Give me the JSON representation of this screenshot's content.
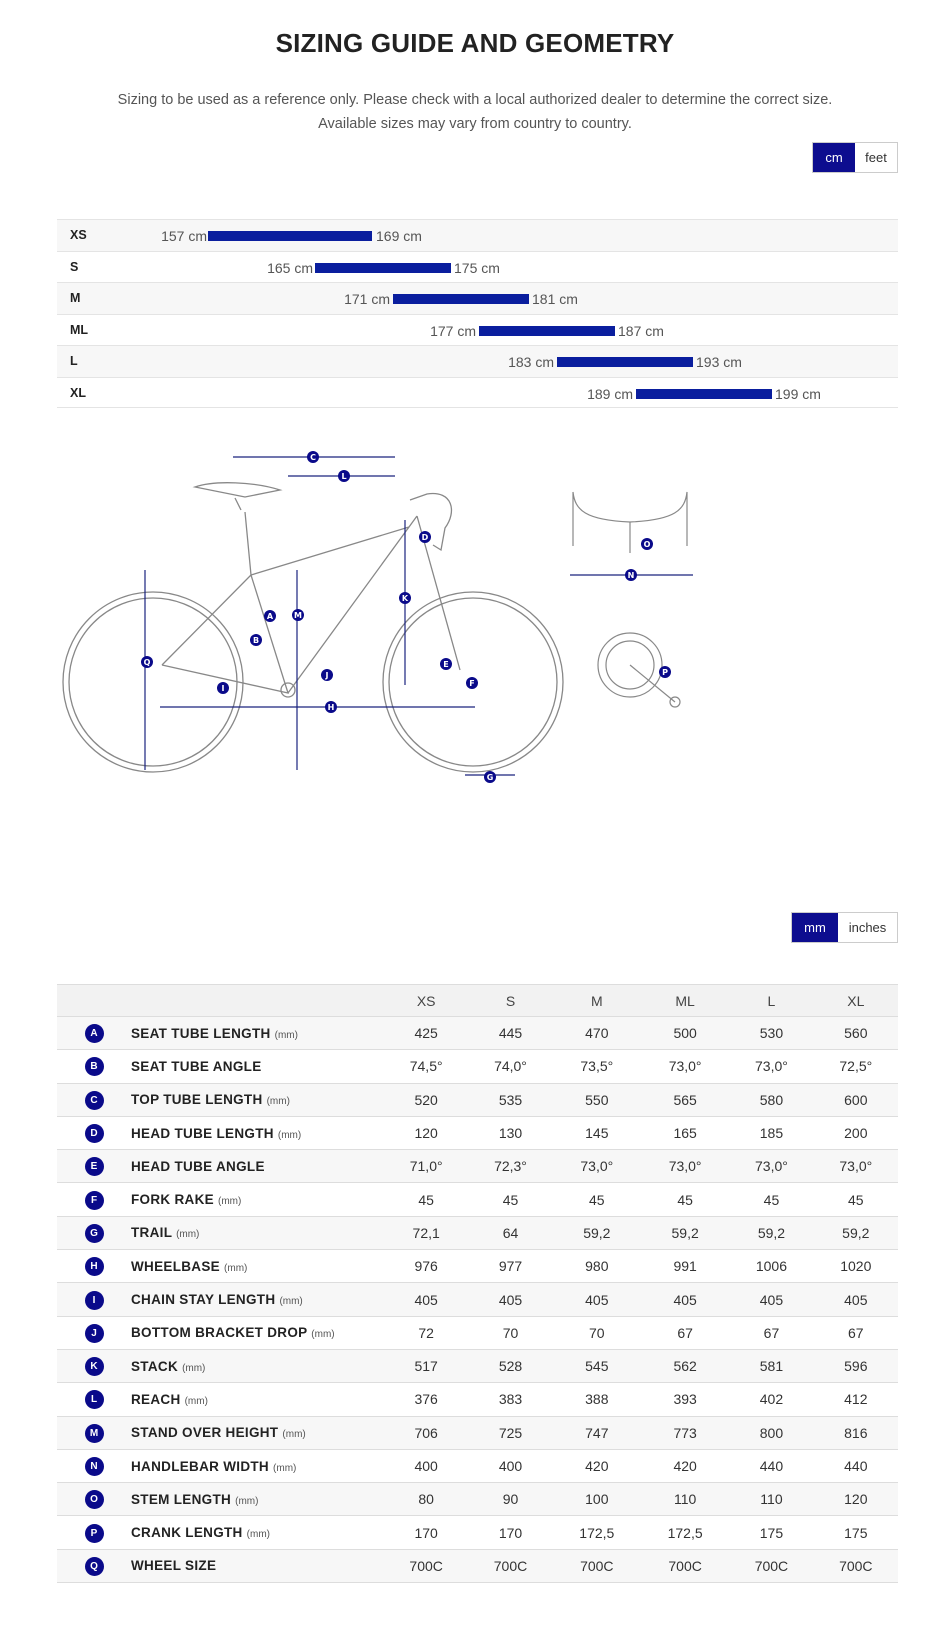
{
  "title": "SIZING GUIDE AND GEOMETRY",
  "subtitle_line1": "Sizing to be used as a reference only. Please check with a local authorized dealer to determine the correct size.",
  "subtitle_line2": "Available sizes may vary from country to country.",
  "height_units": {
    "active": "cm",
    "other": "feet"
  },
  "geometry_units": {
    "active": "mm",
    "other": "inches"
  },
  "accent_color": "#0a1e9e",
  "size_ranges": [
    {
      "size": "XS",
      "min": "157 cm",
      "max": "169 cm"
    },
    {
      "size": "S",
      "min": "165 cm",
      "max": "175 cm"
    },
    {
      "size": "M",
      "min": "171 cm",
      "max": "181 cm"
    },
    {
      "size": "ML",
      "min": "177 cm",
      "max": "187 cm"
    },
    {
      "size": "L",
      "min": "183 cm",
      "max": "193 cm"
    },
    {
      "size": "XL",
      "min": "189 cm",
      "max": "199 cm"
    }
  ],
  "diagram_labels": [
    "A",
    "B",
    "C",
    "D",
    "E",
    "F",
    "G",
    "H",
    "I",
    "J",
    "K",
    "L",
    "M",
    "N",
    "O",
    "P",
    "Q"
  ],
  "geometry": {
    "sizes": [
      "XS",
      "S",
      "M",
      "ML",
      "L",
      "XL"
    ],
    "rows": [
      {
        "letter": "A",
        "name": "SEAT TUBE LENGTH",
        "unit": "(mm)",
        "values": [
          "425",
          "445",
          "470",
          "500",
          "530",
          "560"
        ]
      },
      {
        "letter": "B",
        "name": "SEAT TUBE ANGLE",
        "unit": "",
        "values": [
          "74,5°",
          "74,0°",
          "73,5°",
          "73,0°",
          "73,0°",
          "72,5°"
        ]
      },
      {
        "letter": "C",
        "name": "TOP TUBE LENGTH",
        "unit": "(mm)",
        "values": [
          "520",
          "535",
          "550",
          "565",
          "580",
          "600"
        ]
      },
      {
        "letter": "D",
        "name": "HEAD TUBE LENGTH",
        "unit": "(mm)",
        "values": [
          "120",
          "130",
          "145",
          "165",
          "185",
          "200"
        ]
      },
      {
        "letter": "E",
        "name": "HEAD TUBE ANGLE",
        "unit": "",
        "values": [
          "71,0°",
          "72,3°",
          "73,0°",
          "73,0°",
          "73,0°",
          "73,0°"
        ]
      },
      {
        "letter": "F",
        "name": "FORK RAKE",
        "unit": "(mm)",
        "values": [
          "45",
          "45",
          "45",
          "45",
          "45",
          "45"
        ]
      },
      {
        "letter": "G",
        "name": "TRAIL",
        "unit": "(mm)",
        "values": [
          "72,1",
          "64",
          "59,2",
          "59,2",
          "59,2",
          "59,2"
        ]
      },
      {
        "letter": "H",
        "name": "WHEELBASE",
        "unit": "(mm)",
        "values": [
          "976",
          "977",
          "980",
          "991",
          "1006",
          "1020"
        ]
      },
      {
        "letter": "I",
        "name": "CHAIN STAY LENGTH",
        "unit": "(mm)",
        "values": [
          "405",
          "405",
          "405",
          "405",
          "405",
          "405"
        ]
      },
      {
        "letter": "J",
        "name": "BOTTOM BRACKET DROP",
        "unit": "(mm)",
        "values": [
          "72",
          "70",
          "70",
          "67",
          "67",
          "67"
        ]
      },
      {
        "letter": "K",
        "name": "STACK",
        "unit": "(mm)",
        "values": [
          "517",
          "528",
          "545",
          "562",
          "581",
          "596"
        ]
      },
      {
        "letter": "L",
        "name": "REACH",
        "unit": "(mm)",
        "values": [
          "376",
          "383",
          "388",
          "393",
          "402",
          "412"
        ]
      },
      {
        "letter": "M",
        "name": "STAND OVER HEIGHT",
        "unit": "(mm)",
        "values": [
          "706",
          "725",
          "747",
          "773",
          "800",
          "816"
        ]
      },
      {
        "letter": "N",
        "name": "HANDLEBAR WIDTH",
        "unit": "(mm)",
        "values": [
          "400",
          "400",
          "420",
          "420",
          "440",
          "440"
        ]
      },
      {
        "letter": "O",
        "name": "STEM LENGTH",
        "unit": "(mm)",
        "values": [
          "80",
          "90",
          "100",
          "110",
          "110",
          "120"
        ]
      },
      {
        "letter": "P",
        "name": "CRANK LENGTH",
        "unit": "(mm)",
        "values": [
          "170",
          "170",
          "172,5",
          "172,5",
          "175",
          "175"
        ]
      },
      {
        "letter": "Q",
        "name": "WHEEL SIZE",
        "unit": "",
        "values": [
          "700C",
          "700C",
          "700C",
          "700C",
          "700C",
          "700C"
        ]
      }
    ]
  }
}
